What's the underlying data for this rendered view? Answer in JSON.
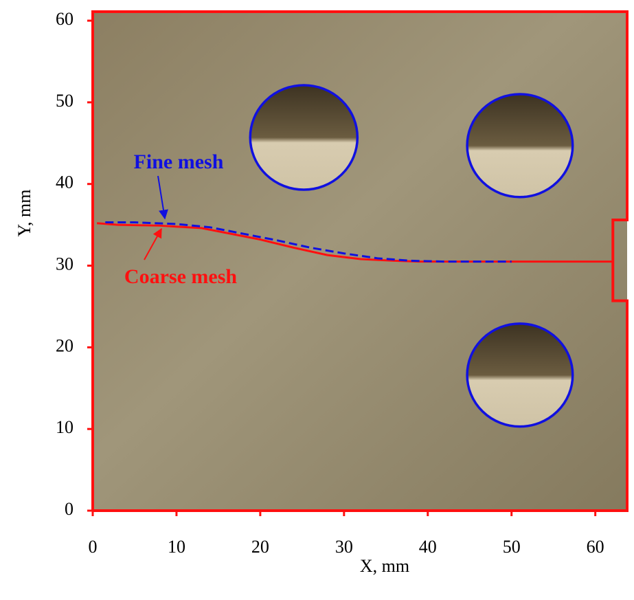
{
  "chart_data": {
    "type": "line",
    "xlabel": "X, mm",
    "ylabel": "Y, mm",
    "xlim": [
      0,
      63.8
    ],
    "ylim": [
      0,
      61.1
    ],
    "xticks": [
      0,
      10,
      20,
      30,
      40,
      50,
      60
    ],
    "yticks": [
      0,
      10,
      20,
      30,
      40,
      50,
      60
    ],
    "series": [
      {
        "name": "Fine mesh",
        "color": "#1010e0",
        "dashed": true,
        "x": [
          1.5,
          5,
          10,
          14,
          18,
          22,
          26,
          30,
          34,
          38,
          42,
          50
        ],
        "values": [
          35.3,
          35.3,
          35.1,
          34.7,
          33.9,
          33.1,
          32.2,
          31.5,
          30.9,
          30.6,
          30.5,
          30.5
        ]
      },
      {
        "name": "Coarse mesh",
        "color": "#ff1010",
        "dashed": false,
        "x": [
          0.5,
          3,
          8,
          13,
          16,
          20,
          24,
          28,
          32,
          36,
          39,
          45,
          50,
          62
        ],
        "values": [
          35.2,
          35.0,
          34.9,
          34.6,
          34.0,
          33.2,
          32.2,
          31.3,
          30.8,
          30.6,
          30.5,
          30.5,
          30.5,
          30.5
        ]
      }
    ],
    "boundary": {
      "color": "#ff1010",
      "x": [
        0,
        0,
        63.8,
        63.8,
        62.1,
        62.1,
        63.8,
        63.8,
        0
      ],
      "values": [
        0,
        61.1,
        61.1,
        35.6,
        35.6,
        25.7,
        25.7,
        0,
        0
      ]
    },
    "holes": {
      "color": "#1010e0",
      "cx": [
        25.2,
        51.0,
        51.0
      ],
      "cy": [
        45.7,
        44.7,
        16.6
      ],
      "r": [
        6.4,
        6.3,
        6.3
      ]
    }
  }
}
